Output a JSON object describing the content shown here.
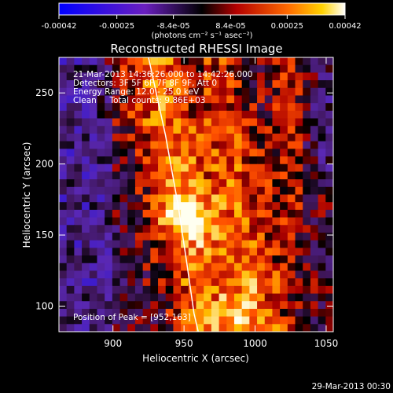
{
  "colorbar": {
    "tick_labels": [
      "-0.00042",
      "-0.00025",
      "-8.4e-05",
      "8.4e-05",
      "0.00025",
      "0.00042"
    ],
    "tick_values": [
      -0.00042,
      -0.00025,
      -8.4e-05,
      8.4e-05,
      0.00025,
      0.00042
    ],
    "range": [
      -0.00042,
      0.00042
    ],
    "units": "(photons cm⁻² s⁻¹ asec⁻²)"
  },
  "chart_data": {
    "type": "heatmap",
    "title": "Reconstructed RHESSI Image",
    "xlabel": "Heliocentric X (arcsec)",
    "ylabel": "Heliocentric Y (arcsec)",
    "xlim": [
      862,
      1055
    ],
    "ylim": [
      82,
      275
    ],
    "x_ticks": [
      900,
      950,
      1000,
      1050
    ],
    "y_ticks": [
      100,
      150,
      200,
      250
    ],
    "x_tick_labels": [
      "900",
      "950",
      "1000",
      "1050"
    ],
    "y_tick_labels": [
      "100",
      "150",
      "200",
      "250"
    ],
    "peak": [
      952,
      163
    ],
    "info_lines": [
      "21-Mar-2013 14:36:26.000 to 14:42:26.000",
      "Detectors: 3F 5F 6F 7F 8F 9F, Att 0",
      "Energy Range: 12.0 - 25.0 keV",
      "Clean     Total counts: 9.86E+03"
    ],
    "peak_label": "Position of Peak = [952,163]",
    "limb_curve": [
      [
        925,
        275
      ],
      [
        937,
        220
      ],
      [
        946,
        170
      ],
      [
        952,
        130
      ],
      [
        957,
        95
      ],
      [
        960,
        82
      ]
    ]
  },
  "footer": {
    "date": "29-Mar-2013 00:30"
  }
}
